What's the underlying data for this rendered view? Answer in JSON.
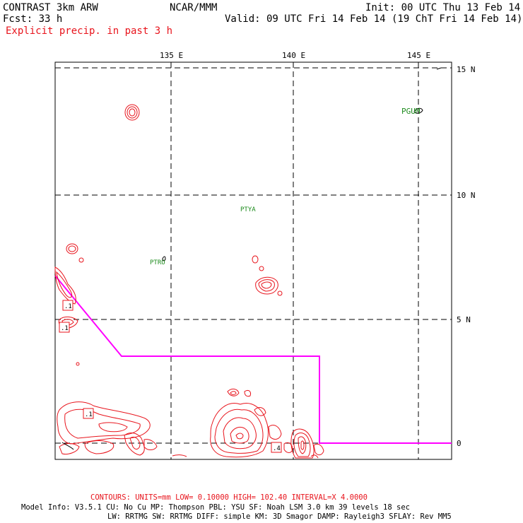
{
  "header": {
    "model": "CONTRAST  3km ARW",
    "center": "NCAR/MMM",
    "init": "Init: 00 UTC Thu 13 Feb 14",
    "fcst": "Fcst:   33 h",
    "valid": "Valid: 09 UTC Fri 14 Feb 14 (19 ChT Fri 14 Feb 14)",
    "field": "Explicit precip. in past 3 h"
  },
  "map": {
    "lon_labels": [
      "135 E",
      "140 E",
      "145 E"
    ],
    "lat_labels": [
      "15 N",
      "10 N",
      "5 N",
      "0"
    ],
    "stations": [
      "PGUM",
      "PTYA",
      "PTRO"
    ],
    "contour_labels": [
      ".1",
      ".1",
      ".1",
      ".4"
    ],
    "colors": {
      "contour": "#e8141c",
      "boundary": "#ff00ff",
      "station": "#1e8c1e",
      "grid": "#000000"
    }
  },
  "footer": {
    "contours": "CONTOURS:  UNITS=mm  LOW= 0.10000     HIGH=  102.40     INTERVAL=X  4.0000",
    "info1": "Model Info: V3.5.1    CU: No Cu    MP: Thompson    PBL: YSU      SF: Noah LSM    3.0 km   39 levels   18 sec",
    "info2": "LW: RRTMG    SW: RRTMG  DIFF: simple KM: 3D Smagor DAMP: Rayleigh3  SFLAY: Rev MM5"
  }
}
